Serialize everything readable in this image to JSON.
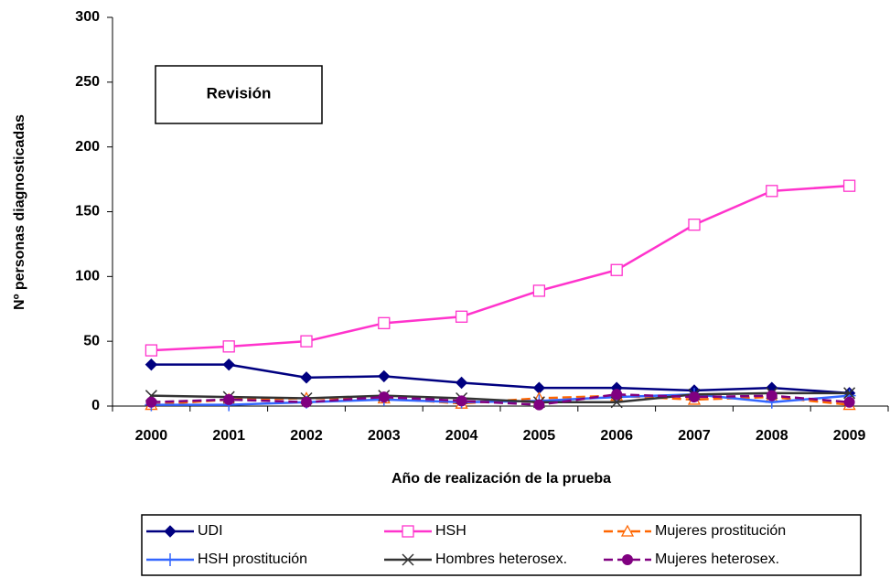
{
  "chart_data": {
    "type": "line",
    "categories": [
      "2000",
      "2001",
      "2002",
      "2003",
      "2004",
      "2005",
      "2006",
      "2007",
      "2008",
      "2009"
    ],
    "ylim": [
      0,
      300
    ],
    "yticks": [
      0,
      50,
      100,
      150,
      200,
      250,
      300
    ],
    "ylabel": "Nº personas diagnosticadas",
    "xlabel": "Año de realización de la prueba",
    "annotation": "Revisión",
    "series": [
      {
        "name": "UDI",
        "color": "#000080",
        "marker": "diamond",
        "dash": false,
        "values": [
          32,
          32,
          22,
          23,
          18,
          14,
          14,
          12,
          14,
          10
        ]
      },
      {
        "name": "HSH",
        "color": "#ff33cc",
        "marker": "square",
        "dash": false,
        "values": [
          43,
          46,
          50,
          64,
          69,
          89,
          105,
          140,
          166,
          170
        ]
      },
      {
        "name": "Mujeres prostitución",
        "color": "#ff6600",
        "marker": "triangle",
        "dash": true,
        "values": [
          1,
          5,
          6,
          6,
          2,
          6,
          8,
          5,
          7,
          1
        ]
      },
      {
        "name": "HSH prostitución",
        "color": "#3366ff",
        "marker": "plus",
        "dash": false,
        "values": [
          1,
          1,
          3,
          5,
          3,
          4,
          7,
          9,
          3,
          8
        ]
      },
      {
        "name": "Hombres heterosex.",
        "color": "#333333",
        "marker": "x",
        "dash": false,
        "values": [
          8,
          7,
          6,
          8,
          6,
          3,
          3,
          9,
          10,
          10
        ]
      },
      {
        "name": "Mujeres heterosex.",
        "color": "#800080",
        "marker": "circle",
        "dash": true,
        "values": [
          3,
          5,
          3,
          7,
          4,
          1,
          9,
          7,
          8,
          3
        ]
      }
    ]
  }
}
